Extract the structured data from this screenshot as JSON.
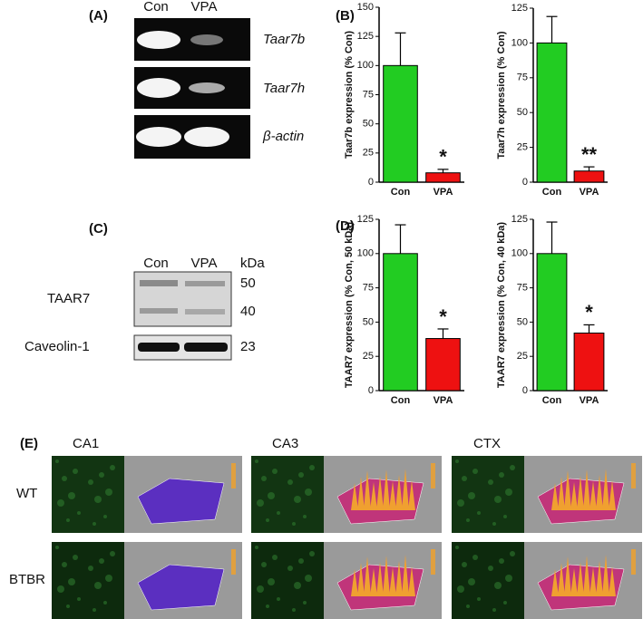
{
  "panel_labels": [
    "(A)",
    "(B)",
    "(C)",
    "(D)",
    "(E)"
  ],
  "gel": {
    "lanes": [
      "Con",
      "VPA"
    ],
    "genes": [
      "Taar7b",
      "Taar7h",
      "β-actin"
    ]
  },
  "chart_data": [
    {
      "type": "bar",
      "ylabel": "Taar7b expression (% Con)",
      "categories": [
        "Con",
        "VPA"
      ],
      "values": [
        100,
        8
      ],
      "errors": [
        28,
        3
      ],
      "colors": [
        "#22cc22",
        "#ee1111"
      ],
      "ylim": [
        0,
        150
      ],
      "yticks": [
        0,
        25,
        50,
        75,
        100,
        125,
        150
      ],
      "annotation": "*"
    },
    {
      "type": "bar",
      "ylabel": "Taar7h expression (% Con)",
      "categories": [
        "Con",
        "VPA"
      ],
      "values": [
        100,
        8
      ],
      "errors": [
        19,
        3
      ],
      "colors": [
        "#22cc22",
        "#ee1111"
      ],
      "ylim": [
        0,
        125
      ],
      "yticks": [
        0,
        25,
        50,
        75,
        100,
        125
      ],
      "annotation": "**"
    },
    {
      "type": "bar",
      "ylabel": "TAAR7 expression (% Con, 50 kDa)",
      "categories": [
        "Con",
        "VPA"
      ],
      "values": [
        100,
        38
      ],
      "errors": [
        21,
        7
      ],
      "colors": [
        "#22cc22",
        "#ee1111"
      ],
      "ylim": [
        0,
        125
      ],
      "yticks": [
        0,
        25,
        50,
        75,
        100,
        125
      ],
      "annotation": "*"
    },
    {
      "type": "bar",
      "ylabel": "TAAR7 expression (% Con, 40 kDa)",
      "categories": [
        "Con",
        "VPA"
      ],
      "values": [
        100,
        42
      ],
      "errors": [
        23,
        6
      ],
      "colors": [
        "#22cc22",
        "#ee1111"
      ],
      "ylim": [
        0,
        125
      ],
      "yticks": [
        0,
        25,
        50,
        75,
        100,
        125
      ],
      "annotation": "*"
    }
  ],
  "western": {
    "lanes": [
      "Con",
      "VPA"
    ],
    "unit": "kDa",
    "bands": [
      {
        "label": "TAAR7",
        "sizes": [
          50,
          40
        ]
      },
      {
        "label": "Caveolin-1",
        "sizes": [
          23
        ]
      }
    ]
  },
  "imaging": {
    "regions": [
      "CA1",
      "CA3",
      "CTX"
    ],
    "groups": [
      "WT",
      "BTBR"
    ]
  }
}
